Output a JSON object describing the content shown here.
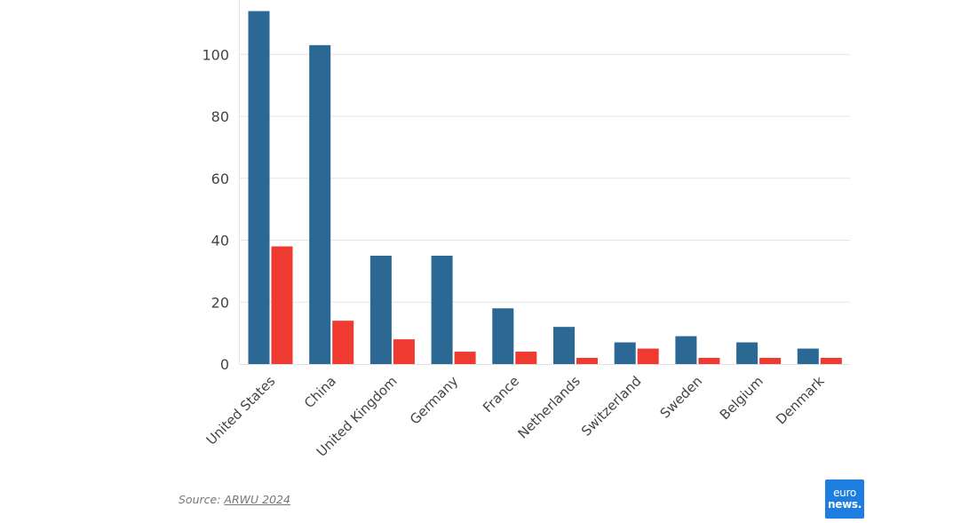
{
  "chart_data": {
    "type": "bar",
    "categories": [
      "United States",
      "China",
      "United Kingdom",
      "Germany",
      "France",
      "Netherlands",
      "Switzerland",
      "Sweden",
      "Belgium",
      "Denmark"
    ],
    "series": [
      {
        "values": [
          114,
          103,
          35,
          35,
          18,
          12,
          7,
          9,
          7,
          5
        ],
        "color": "#2b6893"
      },
      {
        "values": [
          38,
          14,
          8,
          4,
          4,
          2,
          5,
          2,
          2,
          2
        ],
        "color": "#ee3a31"
      }
    ],
    "yticks": [
      "0",
      "20",
      "40",
      "60",
      "80",
      "100"
    ],
    "ylim": [
      0,
      115
    ],
    "grid": true,
    "title": "",
    "xlabel": "",
    "ylabel": ""
  },
  "footer": {
    "source_prefix": "Source: ",
    "source_link": "ARWU 2024"
  },
  "logo": {
    "line1": "euro",
    "line2": "news.",
    "bg_color": "#1e7ee0"
  }
}
